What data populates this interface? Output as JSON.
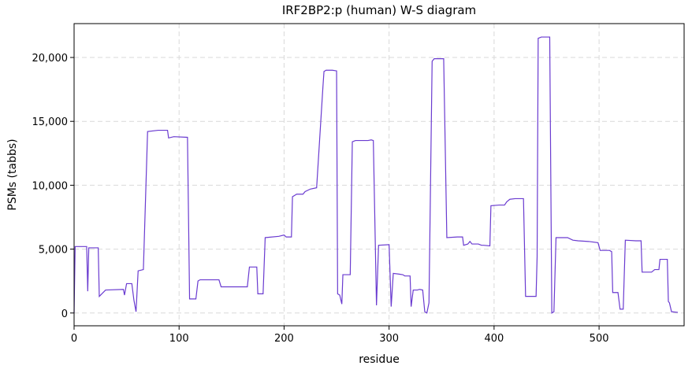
{
  "chart_data": {
    "type": "line",
    "title": "IRF2BP2:p (human) W-S diagram",
    "x_label": "residue",
    "y_label": "PSMs (tabbs)",
    "color": "#6a3bd0",
    "grid": true,
    "xlim": [
      0,
      581
    ],
    "ylim": [
      -1000,
      22650
    ],
    "xticks": [
      0,
      100,
      200,
      300,
      400,
      500
    ],
    "yticks": [
      0,
      {
        "value": 5000,
        "label": "5,000"
      },
      {
        "value": 10000,
        "label": "10,000"
      },
      {
        "value": 15000,
        "label": "15,000"
      },
      {
        "value": 20000,
        "label": "20,000"
      }
    ],
    "x": [
      0,
      1,
      12,
      13,
      14,
      23,
      24,
      30,
      47,
      48,
      50,
      55,
      57,
      59,
      61,
      66,
      70,
      80,
      89,
      90,
      95,
      108,
      110,
      116,
      118,
      120,
      138,
      140,
      165,
      167,
      174,
      175,
      180,
      182,
      195,
      200,
      202,
      207,
      208,
      210,
      212,
      218,
      220,
      225,
      231,
      237,
      238,
      240,
      246,
      250,
      251,
      253,
      255,
      256,
      263,
      265,
      268,
      280,
      283,
      285,
      288,
      290,
      300,
      302,
      304,
      309,
      313,
      315,
      320,
      321,
      323,
      327,
      329,
      332,
      334,
      336,
      338,
      341,
      343,
      352,
      355,
      365,
      370,
      371,
      375,
      377,
      379,
      385,
      388,
      390,
      396,
      397,
      405,
      410,
      412,
      415,
      420,
      428,
      430,
      440,
      441,
      442,
      445,
      453,
      455,
      457,
      459,
      470,
      475,
      480,
      490,
      499,
      501,
      510,
      512,
      513,
      518,
      520,
      523,
      525,
      535,
      540,
      541,
      550,
      553,
      557,
      558,
      565,
      566,
      567,
      569,
      575
    ],
    "values": [
      0,
      5200,
      5200,
      1700,
      5100,
      5100,
      1300,
      1800,
      1850,
      1400,
      2300,
      2300,
      1000,
      100,
      3300,
      3400,
      14200,
      14300,
      14300,
      13700,
      13800,
      13750,
      1100,
      1100,
      2500,
      2600,
      2600,
      2050,
      2050,
      3600,
      3600,
      1500,
      1500,
      5900,
      6000,
      6100,
      5950,
      5950,
      9100,
      9200,
      9300,
      9300,
      9500,
      9700,
      9800,
      17700,
      18900,
      19000,
      19000,
      18950,
      1500,
      1400,
      700,
      3000,
      3000,
      13400,
      13500,
      13500,
      13550,
      13500,
      600,
      5300,
      5350,
      500,
      3100,
      3050,
      3000,
      2900,
      2900,
      500,
      1800,
      1800,
      1850,
      1800,
      100,
      0,
      800,
      19700,
      19900,
      19900,
      5900,
      5950,
      5950,
      5300,
      5400,
      5600,
      5400,
      5400,
      5300,
      5300,
      5250,
      8400,
      8450,
      8450,
      8700,
      8900,
      8950,
      8950,
      1300,
      1300,
      4400,
      21500,
      21600,
      21600,
      0,
      100,
      5900,
      5900,
      5700,
      5650,
      5600,
      5500,
      4900,
      4900,
      4800,
      1600,
      1600,
      300,
      300,
      5700,
      5650,
      5650,
      3200,
      3200,
      3400,
      3400,
      4200,
      4200,
      900,
      800,
      100,
      50
    ]
  }
}
